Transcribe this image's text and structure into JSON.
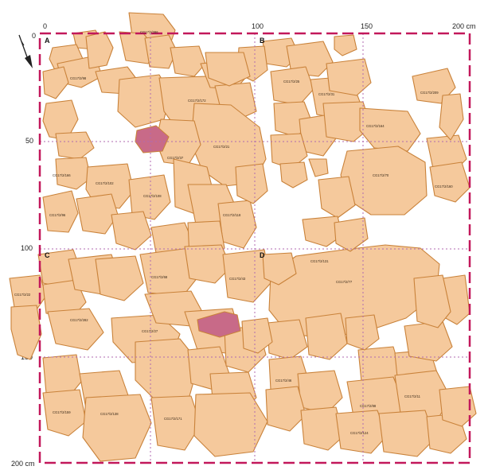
{
  "colors": {
    "sherd_fill": "#f5c99c",
    "sherd_stroke": "#c9823a",
    "highlight_fill": "#c86a88",
    "grid_border": "#c2185b",
    "grid_inner": "#b06ab0"
  },
  "axis": {
    "top_ticks": [
      "0",
      "100",
      "150",
      "200 cm"
    ],
    "left_ticks": [
      "0",
      "50",
      "100",
      "150",
      "200 cm"
    ]
  },
  "quadrants": [
    "A",
    "B",
    "C",
    "D"
  ],
  "north_arrow_icon": "north-arrow-icon",
  "sherd_labels": [
    "CG17/2/286",
    "CG17/2/98",
    "CG17/2/172",
    "CG17/2/21",
    "CG17/2/37",
    "CG17/2/166",
    "CG17/2/102",
    "CG17/2/108",
    "CG17/2/96",
    "CG17/2/118",
    "CG17/2/25",
    "CG17/2/31",
    "CG17/2/209",
    "CG17/2/164",
    "CG17/2/70",
    "CG17/2/160",
    "CG17/2/282",
    "CG17/2/22",
    "CG17/2/68",
    "CG17/2/43",
    "CG17/2/27",
    "CG17/2/159",
    "CG17/2/138",
    "CG17/2/171",
    "CG17/2/77",
    "CG17/2/131",
    "CG17/2/46",
    "CG17/2/88",
    "CG17/2/11",
    "CG17/2/124"
  ]
}
